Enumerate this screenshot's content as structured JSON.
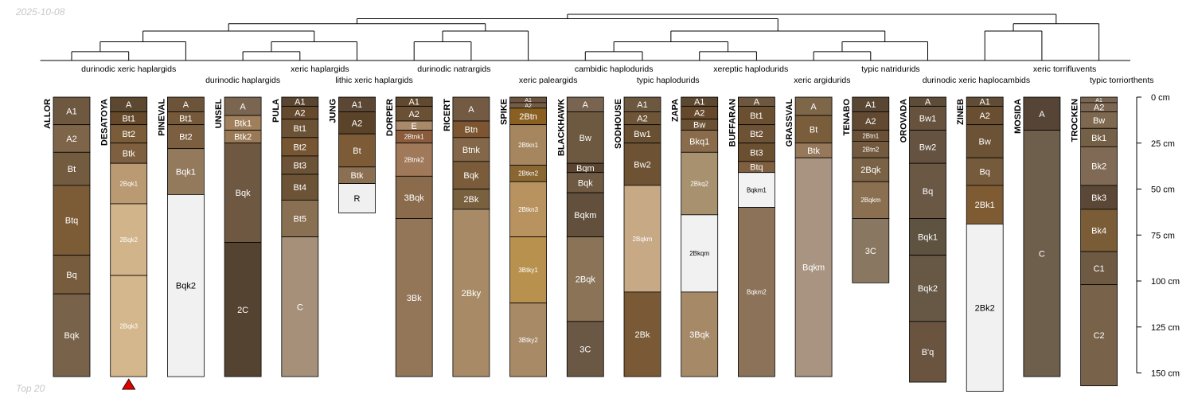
{
  "header": {
    "date_stamp": "2025-10-08"
  },
  "footer": {
    "label": "Top 20"
  },
  "depth_axis": {
    "unit": "cm",
    "max_depth": 150,
    "ticks": [
      {
        "value": 0,
        "label": "0 cm"
      },
      {
        "value": 25,
        "label": "25 cm"
      },
      {
        "value": 50,
        "label": "50 cm"
      },
      {
        "value": 75,
        "label": "75 cm"
      },
      {
        "value": 100,
        "label": "100 cm"
      },
      {
        "value": 125,
        "label": "125 cm"
      },
      {
        "value": 150,
        "label": "150 cm"
      }
    ]
  },
  "taxonomy_labels": [
    {
      "text": "durinodic xeric haplargids",
      "over": 1,
      "row": 1
    },
    {
      "text": "durinodic haplargids",
      "over": 3,
      "row": 2
    },
    {
      "text": "xeric haplargids",
      "over": 4.35,
      "row": 1
    },
    {
      "text": "lithic xeric haplargids",
      "over": 5.3,
      "row": 2
    },
    {
      "text": "durinodic natrargids",
      "over": 6.7,
      "row": 1
    },
    {
      "text": "xeric paleargids",
      "over": 8.35,
      "row": 2
    },
    {
      "text": "cambidic haplodurids",
      "over": 9.5,
      "row": 1
    },
    {
      "text": "typic haplodurids",
      "over": 10.45,
      "row": 2
    },
    {
      "text": "xereptic haplodurids",
      "over": 11.9,
      "row": 1
    },
    {
      "text": "xeric argidurids",
      "over": 13.15,
      "row": 2
    },
    {
      "text": "typic natridurids",
      "over": 14.35,
      "row": 1
    },
    {
      "text": "durinodic xeric haplocambids",
      "over": 15.85,
      "row": 2
    },
    {
      "text": "xeric torrifluvents",
      "over": 17.4,
      "row": 1
    },
    {
      "text": "typic torriorthents",
      "over": 18.4,
      "row": 2
    }
  ],
  "profiles": [
    {
      "name": "ALLOR",
      "horizons": [
        {
          "name": "A1",
          "top": 0,
          "bottom": 15,
          "color": "#6e5840"
        },
        {
          "name": "A2",
          "top": 15,
          "bottom": 30,
          "color": "#7e6448"
        },
        {
          "name": "Bt",
          "top": 30,
          "bottom": 48,
          "color": "#735b40"
        },
        {
          "name": "Btq",
          "top": 48,
          "bottom": 86,
          "color": "#7b5c37"
        },
        {
          "name": "Bq",
          "top": 86,
          "bottom": 107,
          "color": "#775c3d"
        },
        {
          "name": "Bqk",
          "top": 107,
          "bottom": 152,
          "color": "#786249"
        }
      ]
    },
    {
      "name": "DESATOYA",
      "marker": true,
      "horizons": [
        {
          "name": "A",
          "top": 0,
          "bottom": 8,
          "color": "#5c4830"
        },
        {
          "name": "Bt1",
          "top": 8,
          "bottom": 15,
          "color": "#66492b"
        },
        {
          "name": "Bt2",
          "top": 15,
          "bottom": 25,
          "color": "#7b5c39"
        },
        {
          "name": "Btk",
          "top": 25,
          "bottom": 36,
          "color": "#7e6040"
        },
        {
          "name": "2Bqk1",
          "top": 36,
          "bottom": 58,
          "color": "#b99a72"
        },
        {
          "name": "2Bqk2",
          "top": 58,
          "bottom": 97,
          "color": "#d2b48a"
        },
        {
          "name": "2Bqk3",
          "top": 97,
          "bottom": 152,
          "color": "#d4b78c"
        }
      ]
    },
    {
      "name": "PINEVAL",
      "horizons": [
        {
          "name": "A",
          "top": 0,
          "bottom": 8,
          "color": "#6b543a"
        },
        {
          "name": "Bt1",
          "top": 8,
          "bottom": 15,
          "color": "#76593a"
        },
        {
          "name": "Bt2",
          "top": 15,
          "bottom": 28,
          "color": "#7c5f40"
        },
        {
          "name": "Bqk1",
          "top": 28,
          "bottom": 53,
          "color": "#947a5c"
        },
        {
          "name": "Bqk2",
          "top": 53,
          "bottom": 152,
          "color": "#f1f1f1"
        }
      ]
    },
    {
      "name": "UNSEL",
      "horizons": [
        {
          "name": "A",
          "top": 0,
          "bottom": 10,
          "color": "#7a6650"
        },
        {
          "name": "Btk1",
          "top": 10,
          "bottom": 18,
          "color": "#a0805c"
        },
        {
          "name": "Btk2",
          "top": 18,
          "bottom": 25,
          "color": "#9a7a56"
        },
        {
          "name": "Bqk",
          "top": 25,
          "bottom": 79,
          "color": "#6e5841"
        },
        {
          "name": "2C",
          "top": 79,
          "bottom": 152,
          "color": "#554331"
        }
      ]
    },
    {
      "name": "PULA",
      "horizons": [
        {
          "name": "A1",
          "top": 0,
          "bottom": 5,
          "color": "#5a4530"
        },
        {
          "name": "A2",
          "top": 5,
          "bottom": 12,
          "color": "#65492d"
        },
        {
          "name": "Bt1",
          "top": 12,
          "bottom": 22,
          "color": "#6c5234"
        },
        {
          "name": "Bt2",
          "top": 22,
          "bottom": 32,
          "color": "#765532"
        },
        {
          "name": "Bt3",
          "top": 32,
          "bottom": 42,
          "color": "#6c5236"
        },
        {
          "name": "Bt4",
          "top": 42,
          "bottom": 56,
          "color": "#6c5336"
        },
        {
          "name": "Bt5",
          "top": 56,
          "bottom": 76,
          "color": "#8a7052"
        },
        {
          "name": "C",
          "top": 76,
          "bottom": 152,
          "color": "#a69079"
        }
      ]
    },
    {
      "name": "JUNG",
      "horizons": [
        {
          "name": "A1",
          "top": 0,
          "bottom": 8,
          "color": "#5b4733"
        },
        {
          "name": "A2",
          "top": 8,
          "bottom": 20,
          "color": "#5b432a"
        },
        {
          "name": "Bt",
          "top": 20,
          "bottom": 38,
          "color": "#7d5b37"
        },
        {
          "name": "Btk",
          "top": 38,
          "bottom": 47,
          "color": "#8b6f52"
        },
        {
          "name": "R",
          "top": 47,
          "bottom": 63,
          "color": "#f0f0f0"
        }
      ]
    },
    {
      "name": "DORPER",
      "horizons": [
        {
          "name": "A1",
          "top": 0,
          "bottom": 5,
          "color": "#60492f"
        },
        {
          "name": "A2",
          "top": 5,
          "bottom": 13,
          "color": "#6a5034"
        },
        {
          "name": "E",
          "top": 13,
          "bottom": 18,
          "color": "#a88a6a"
        },
        {
          "name": "2Btnk1",
          "top": 18,
          "bottom": 25,
          "color": "#8a5c3c"
        },
        {
          "name": "2Btnk2",
          "top": 25,
          "bottom": 43,
          "color": "#a0795a"
        },
        {
          "name": "3Bqk",
          "top": 43,
          "bottom": 66,
          "color": "#8a6c4c"
        },
        {
          "name": "3Bk",
          "top": 66,
          "bottom": 152,
          "color": "#937558"
        }
      ]
    },
    {
      "name": "RICERT",
      "horizons": [
        {
          "name": "A",
          "top": 0,
          "bottom": 13,
          "color": "#735b43"
        },
        {
          "name": "Btn",
          "top": 13,
          "bottom": 22,
          "color": "#7d5530"
        },
        {
          "name": "Btnk",
          "top": 22,
          "bottom": 35,
          "color": "#846748"
        },
        {
          "name": "Bqk",
          "top": 35,
          "bottom": 50,
          "color": "#7a5c3a"
        },
        {
          "name": "2Bk",
          "top": 50,
          "bottom": 61,
          "color": "#79603f"
        },
        {
          "name": "2Bky",
          "top": 61,
          "bottom": 152,
          "color": "#a88b66"
        }
      ]
    },
    {
      "name": "SPIKE",
      "horizons": [
        {
          "name": "A1",
          "top": 0,
          "bottom": 3,
          "color": "#6b5540"
        },
        {
          "name": "A2",
          "top": 3,
          "bottom": 6,
          "color": "#745c44"
        },
        {
          "name": "2Btn",
          "top": 6,
          "bottom": 15,
          "color": "#8a6022"
        },
        {
          "name": "2Btkn1",
          "top": 15,
          "bottom": 37,
          "color": "#a6865f"
        },
        {
          "name": "2Btkn2",
          "top": 37,
          "bottom": 46,
          "color": "#8a6632"
        },
        {
          "name": "2Btkn3",
          "top": 46,
          "bottom": 76,
          "color": "#b8935f"
        },
        {
          "name": "3Btky1",
          "top": 76,
          "bottom": 112,
          "color": "#b8914e"
        },
        {
          "name": "3Btky2",
          "top": 112,
          "bottom": 152,
          "color": "#a88a66"
        }
      ]
    },
    {
      "name": "BLACKHAWK",
      "horizons": [
        {
          "name": "A",
          "top": 0,
          "bottom": 8,
          "color": "#786450"
        },
        {
          "name": "Bw",
          "top": 8,
          "bottom": 36,
          "color": "#6d5840"
        },
        {
          "name": "Bqm",
          "top": 36,
          "bottom": 41,
          "color": "#5a4430"
        },
        {
          "name": "Bqk",
          "top": 41,
          "bottom": 52,
          "color": "#6e5942"
        },
        {
          "name": "Bqkm",
          "top": 52,
          "bottom": 76,
          "color": "#62503c"
        },
        {
          "name": "2Bqk",
          "top": 76,
          "bottom": 122,
          "color": "#8a7356"
        },
        {
          "name": "3C",
          "top": 122,
          "bottom": 152,
          "color": "#6b5844"
        }
      ]
    },
    {
      "name": "SODHOUSE",
      "horizons": [
        {
          "name": "A1",
          "top": 0,
          "bottom": 8,
          "color": "#6c573f"
        },
        {
          "name": "A2",
          "top": 8,
          "bottom": 15,
          "color": "#6f5538"
        },
        {
          "name": "Bw1",
          "top": 15,
          "bottom": 25,
          "color": "#6a5032"
        },
        {
          "name": "Bw2",
          "top": 25,
          "bottom": 48,
          "color": "#6d5233"
        },
        {
          "name": "2Bqkm",
          "top": 48,
          "bottom": 106,
          "color": "#c8a986"
        },
        {
          "name": "2Bk",
          "top": 106,
          "bottom": 152,
          "color": "#7a5a36"
        }
      ]
    },
    {
      "name": "ZAPA",
      "horizons": [
        {
          "name": "A1",
          "top": 0,
          "bottom": 5,
          "color": "#5c4730"
        },
        {
          "name": "A2",
          "top": 5,
          "bottom": 12,
          "color": "#66492c"
        },
        {
          "name": "Bw",
          "top": 12,
          "bottom": 18,
          "color": "#6b5134"
        },
        {
          "name": "Bkq1",
          "top": 18,
          "bottom": 30,
          "color": "#8a6c4c"
        },
        {
          "name": "2Bkq2",
          "top": 30,
          "bottom": 64,
          "color": "#a8916e"
        },
        {
          "name": "2Bkqm",
          "top": 64,
          "bottom": 106,
          "color": "#f1f1f1"
        },
        {
          "name": "3Bqk",
          "top": 106,
          "bottom": 152,
          "color": "#a68a68"
        }
      ]
    },
    {
      "name": "BUFFARAN",
      "horizons": [
        {
          "name": "A",
          "top": 0,
          "bottom": 5,
          "color": "#6d573e"
        },
        {
          "name": "Bt1",
          "top": 5,
          "bottom": 15,
          "color": "#6a4f30"
        },
        {
          "name": "Bt2",
          "top": 15,
          "bottom": 25,
          "color": "#6e5236"
        },
        {
          "name": "Bt3",
          "top": 25,
          "bottom": 35,
          "color": "#6a4f31"
        },
        {
          "name": "Btq",
          "top": 35,
          "bottom": 41,
          "color": "#7e6040"
        },
        {
          "name": "Bqkm1",
          "top": 41,
          "bottom": 60,
          "color": "#f2f2f2"
        },
        {
          "name": "Bqkm2",
          "top": 60,
          "bottom": 152,
          "color": "#8c7259"
        }
      ]
    },
    {
      "name": "GRASSVAL",
      "horizons": [
        {
          "name": "A",
          "top": 0,
          "bottom": 10,
          "color": "#7e6648"
        },
        {
          "name": "Bt",
          "top": 10,
          "bottom": 25,
          "color": "#7a5e3c"
        },
        {
          "name": "Btk",
          "top": 25,
          "bottom": 33,
          "color": "#96785a"
        },
        {
          "name": "Bqkm",
          "top": 33,
          "bottom": 152,
          "color": "#a89480"
        }
      ]
    },
    {
      "name": "TENABO",
      "horizons": [
        {
          "name": "A1",
          "top": 0,
          "bottom": 8,
          "color": "#5a4733"
        },
        {
          "name": "A2",
          "top": 8,
          "bottom": 18,
          "color": "#614a31"
        },
        {
          "name": "2Btn1",
          "top": 18,
          "bottom": 24,
          "color": "#6a5036"
        },
        {
          "name": "2Btn2",
          "top": 24,
          "bottom": 33,
          "color": "#735a3e"
        },
        {
          "name": "2Bqk",
          "top": 33,
          "bottom": 46,
          "color": "#7a6246"
        },
        {
          "name": "2Bqkm",
          "top": 46,
          "bottom": 66,
          "color": "#8a7050"
        },
        {
          "name": "3C",
          "top": 66,
          "bottom": 101,
          "color": "#8a7761"
        }
      ]
    },
    {
      "name": "OROVADA",
      "horizons": [
        {
          "name": "A",
          "top": 0,
          "bottom": 5,
          "color": "#5e4c3a"
        },
        {
          "name": "Bw1",
          "top": 5,
          "bottom": 18,
          "color": "#66523d"
        },
        {
          "name": "Bw2",
          "top": 18,
          "bottom": 36,
          "color": "#655240"
        },
        {
          "name": "Bq",
          "top": 36,
          "bottom": 66,
          "color": "#6a5744"
        },
        {
          "name": "Bqk1",
          "top": 66,
          "bottom": 86,
          "color": "#5e5240"
        },
        {
          "name": "Bqk2",
          "top": 86,
          "bottom": 122,
          "color": "#665845"
        },
        {
          "name": "B'q",
          "top": 122,
          "bottom": 155,
          "color": "#6a5440"
        }
      ]
    },
    {
      "name": "ZINEB",
      "horizons": [
        {
          "name": "A1",
          "top": 0,
          "bottom": 5,
          "color": "#614c37"
        },
        {
          "name": "A2",
          "top": 5,
          "bottom": 15,
          "color": "#6a4e31"
        },
        {
          "name": "Bw",
          "top": 15,
          "bottom": 33,
          "color": "#6c5336"
        },
        {
          "name": "Bq",
          "top": 33,
          "bottom": 48,
          "color": "#755a3b"
        },
        {
          "name": "2Bk1",
          "top": 48,
          "bottom": 69,
          "color": "#7f5b33"
        },
        {
          "name": "2Bk2",
          "top": 69,
          "bottom": 160,
          "color": "#f1f1f1"
        }
      ]
    },
    {
      "name": "MOSIDA",
      "horizons": [
        {
          "name": "A",
          "top": 0,
          "bottom": 18,
          "color": "#564536"
        },
        {
          "name": "C",
          "top": 18,
          "bottom": 152,
          "color": "#6e5e4c"
        }
      ]
    },
    {
      "name": "TROCKEN",
      "horizons": [
        {
          "name": "A1",
          "top": 0,
          "bottom": 3,
          "color": "#7a6650"
        },
        {
          "name": "A2",
          "top": 3,
          "bottom": 8,
          "color": "#7c6652"
        },
        {
          "name": "Bw",
          "top": 8,
          "bottom": 17,
          "color": "#7e684f"
        },
        {
          "name": "Bk1",
          "top": 17,
          "bottom": 27,
          "color": "#745f47"
        },
        {
          "name": "Bk2",
          "top": 27,
          "bottom": 48,
          "color": "#806a55"
        },
        {
          "name": "Bk3",
          "top": 48,
          "bottom": 61,
          "color": "#5a4735"
        },
        {
          "name": "Bk4",
          "top": 61,
          "bottom": 84,
          "color": "#7a5c36"
        },
        {
          "name": "C1",
          "top": 84,
          "bottom": 102,
          "color": "#6e5a42"
        },
        {
          "name": "C2",
          "top": 102,
          "bottom": 157,
          "color": "#78624a"
        }
      ]
    }
  ],
  "dendrogram": {
    "root_height": 0.94,
    "nodes": [
      {
        "a": "p0",
        "b": "p1",
        "h": 0.18
      },
      {
        "a": "n0",
        "b": "p2",
        "h": 0.38
      },
      {
        "a": "p3",
        "b": "p4",
        "h": 0.18
      },
      {
        "a": "n2",
        "b": "p5",
        "h": 0.38
      },
      {
        "a": "n1",
        "b": "n3",
        "h": 0.6
      },
      {
        "a": "p6",
        "b": "p7",
        "h": 0.38
      },
      {
        "a": "n5",
        "b": "p8",
        "h": 0.6
      },
      {
        "a": "n4",
        "b": "n6",
        "h": 0.75
      },
      {
        "a": "p9",
        "b": "p10",
        "h": 0.18
      },
      {
        "a": "p11",
        "b": "p12",
        "h": 0.18
      },
      {
        "a": "n8",
        "b": "n9",
        "h": 0.38
      },
      {
        "a": "p13",
        "b": "p14",
        "h": 0.18
      },
      {
        "a": "n11",
        "b": "p15",
        "h": 0.38
      },
      {
        "a": "n10",
        "b": "n12",
        "h": 0.6
      },
      {
        "a": "n7",
        "b": "n13",
        "h": 0.85
      },
      {
        "a": "p16",
        "b": "p17",
        "h": 0.6
      },
      {
        "a": "n15",
        "b": "p18",
        "h": 0.75
      },
      {
        "a": "n14",
        "b": "n16",
        "h": 0.94
      }
    ]
  }
}
